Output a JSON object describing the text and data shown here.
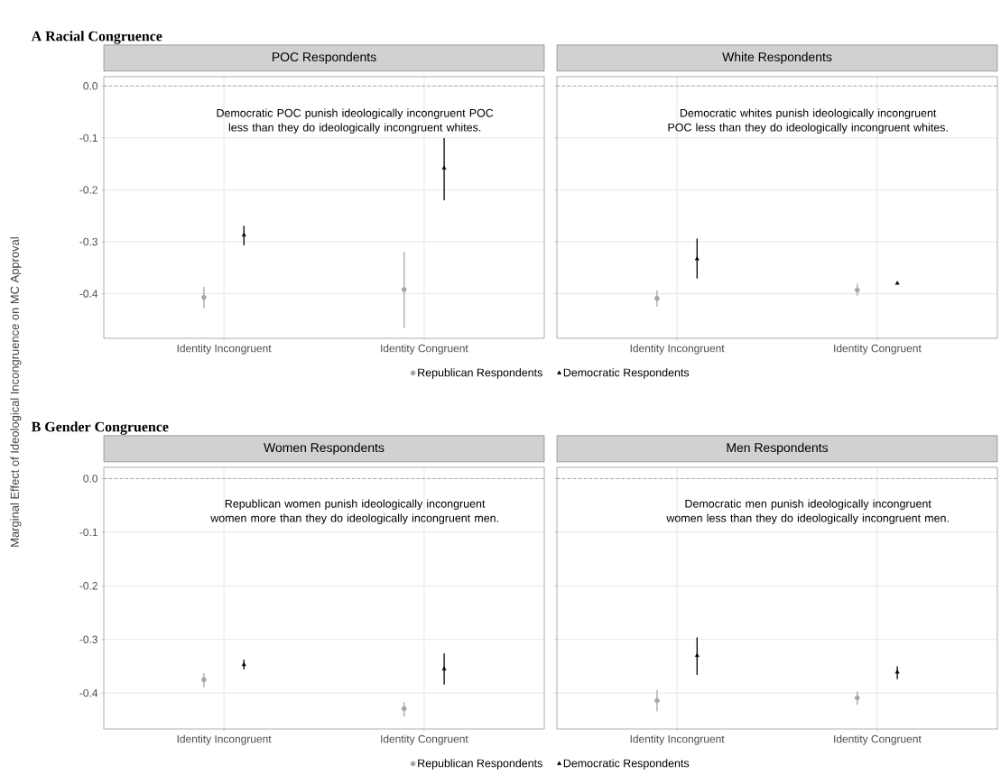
{
  "chart_data": [
    {
      "type": "scatter",
      "subtitle": "**A** Racial Congruence",
      "title": "POC Respondents",
      "ylabel": "Marginal Effect of Ideological Incongruence on MC Approval",
      "categories": [
        "Identity Incongruent",
        "Identity Congruent"
      ],
      "ylim": [
        -0.486,
        0.018
      ],
      "yticks": [
        {
          "value": 0,
          "label": "0.0"
        },
        -0.1,
        -0.2,
        -0.3,
        -0.4
      ],
      "grid": true,
      "legend": "bottom",
      "ref_lines": [
        {
          "axis": "y",
          "value": 0,
          "color": "#999999",
          "line_style": "dashed"
        }
      ],
      "annotations": [
        "Democratic POC punish ideologically incongruent POC less than they do ideologically incongruent whites."
      ],
      "series": [
        {
          "name": "Republican Respondents",
          "color": "#a6a6a6",
          "marker": "circle",
          "values": [
            -0.407,
            -0.392
          ],
          "errors": [
            [
              -0.428,
              -0.387
            ],
            [
              -0.466,
              -0.319
            ]
          ]
        },
        {
          "name": "Democratic Respondents",
          "color": "#000000",
          "marker": "triangle",
          "values": [
            -0.287,
            -0.158
          ],
          "errors": [
            [
              -0.307,
              -0.269
            ],
            [
              -0.22,
              -0.1
            ]
          ]
        }
      ]
    },
    {
      "type": "scatter",
      "title": "White Respondents",
      "categories": [
        "Identity Incongruent",
        "Identity Congruent"
      ],
      "ylim": [
        -0.486,
        0.018
      ],
      "yticks": [
        0,
        -0.1,
        -0.2,
        -0.3,
        -0.4
      ],
      "grid": true,
      "tick_labels": "x",
      "ref_lines": [
        {
          "axis": "y",
          "value": 0,
          "color": "#999999",
          "line_style": "dashed"
        }
      ],
      "annotations": [
        "Democratic whites punish ideologically incongruent POC less than they do ideologically incongruent whites."
      ],
      "series": [
        {
          "color": "#a6a6a6",
          "marker": "circle",
          "values": [
            -0.409,
            -0.393
          ],
          "errors": [
            [
              -0.425,
              -0.394
            ],
            [
              -0.404,
              -0.381
            ]
          ]
        },
        {
          "color": "#000000",
          "marker": "triangle",
          "values": [
            -0.333,
            -0.38
          ],
          "errors": [
            [
              -0.371,
              -0.294
            ],
            null
          ]
        }
      ]
    },
    {
      "type": "scatter",
      "subtitle": "**B** Gender Congruence",
      "title": "Women Respondents",
      "categories": [
        "Identity Incongruent",
        "Identity Congruent"
      ],
      "ylim": [
        -0.467,
        0.021
      ],
      "yticks": [
        {
          "value": 0,
          "label": "0.0"
        },
        -0.1,
        -0.2,
        -0.3,
        -0.4
      ],
      "grid": true,
      "legend": "bottom",
      "ref_lines": [
        {
          "axis": "y",
          "value": 0,
          "color": "#999999",
          "line_style": "dashed"
        }
      ],
      "annotations": [
        "Republican women punish ideologically incongruent women more than they do ideologically incongruent men."
      ],
      "series": [
        {
          "name": "Republican Respondents",
          "color": "#a6a6a6",
          "marker": "circle",
          "values": [
            -0.375,
            -0.429
          ],
          "errors": [
            [
              -0.389,
              -0.363
            ],
            [
              -0.444,
              -0.417
            ]
          ]
        },
        {
          "name": "Democratic Respondents",
          "color": "#000000",
          "marker": "triangle",
          "values": [
            -0.347,
            -0.355
          ],
          "errors": [
            [
              -0.356,
              -0.338
            ],
            [
              -0.384,
              -0.326
            ]
          ]
        }
      ]
    },
    {
      "type": "scatter",
      "title": "Men Respondents",
      "categories": [
        "Identity Incongruent",
        "Identity Congruent"
      ],
      "ylim": [
        -0.467,
        0.021
      ],
      "yticks": [
        0,
        -0.1,
        -0.2,
        -0.3,
        -0.4
      ],
      "grid": true,
      "tick_labels": "x",
      "ref_lines": [
        {
          "axis": "y",
          "value": 0,
          "color": "#999999",
          "line_style": "dashed"
        }
      ],
      "annotations": [
        "Democratic men punish ideologically incongruent women less than they do ideologically incongruent men."
      ],
      "series": [
        {
          "color": "#a6a6a6",
          "marker": "circle",
          "values": [
            -0.414,
            -0.409
          ],
          "errors": [
            [
              -0.434,
              -0.394
            ],
            [
              -0.422,
              -0.397
            ]
          ]
        },
        {
          "color": "#000000",
          "marker": "triangle",
          "values": [
            -0.33,
            -0.361
          ],
          "errors": [
            [
              -0.366,
              -0.296
            ],
            [
              -0.374,
              -0.35
            ]
          ]
        }
      ]
    }
  ]
}
